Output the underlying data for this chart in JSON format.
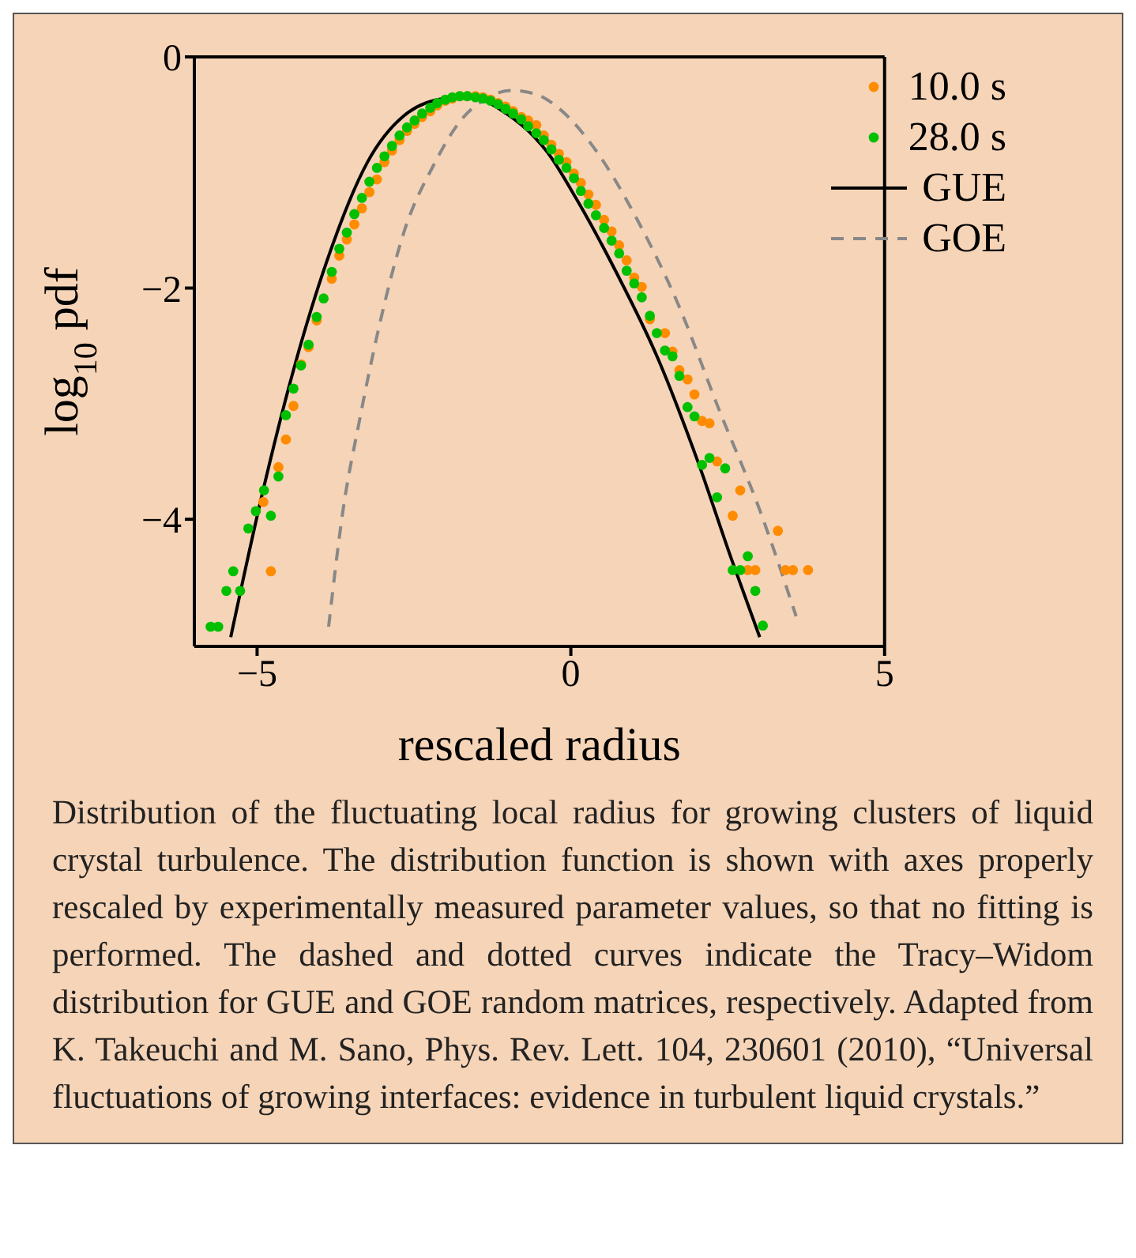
{
  "chart_data": {
    "type": "scatter",
    "xlabel": "rescaled radius",
    "ylabel": "log$_{10}$ pdf",
    "xlim": [
      -6,
      5
    ],
    "ylim": [
      -5.1,
      0
    ],
    "xticks": [
      -5,
      0,
      5
    ],
    "yticks": [
      -4,
      -2,
      0
    ],
    "grid": false,
    "legend": "top right",
    "series": [
      {
        "name": "10.0 s",
        "marker": "circle",
        "color": "#ff8c00",
        "x": [
          -4.9,
          -4.78,
          -4.66,
          -4.54,
          -4.42,
          -4.3,
          -4.18,
          -4.05,
          -3.81,
          -3.69,
          -3.57,
          -3.45,
          -3.33,
          -3.21,
          -3.09,
          -2.97,
          -2.85,
          -2.73,
          -2.61,
          -2.49,
          -2.37,
          -2.24,
          -2.13,
          -2.0,
          -1.89,
          -1.77,
          -1.65,
          -1.52,
          -1.4,
          -1.28,
          -1.16,
          -1.04,
          -0.92,
          -0.79,
          -0.68,
          -0.55,
          -0.43,
          -0.31,
          -0.19,
          -0.07,
          0.05,
          0.16,
          0.28,
          0.4,
          0.53,
          0.65,
          0.77,
          0.89,
          1.01,
          1.13,
          1.26,
          1.5,
          1.62,
          1.73,
          1.86,
          1.97,
          2.09,
          2.21,
          2.33,
          2.58,
          2.7,
          2.82,
          2.94,
          3.3,
          3.42,
          3.54,
          3.78
        ],
        "values": [
          -3.85,
          -4.45,
          -3.55,
          -3.31,
          -3.02,
          -2.66,
          -2.51,
          -2.28,
          -1.92,
          -1.72,
          -1.58,
          -1.45,
          -1.31,
          -1.17,
          -1.06,
          -0.91,
          -0.81,
          -0.72,
          -0.64,
          -0.58,
          -0.52,
          -0.47,
          -0.42,
          -0.38,
          -0.36,
          -0.34,
          -0.34,
          -0.34,
          -0.35,
          -0.37,
          -0.4,
          -0.43,
          -0.47,
          -0.52,
          -0.55,
          -0.59,
          -0.68,
          -0.76,
          -0.84,
          -0.91,
          -1.01,
          -1.09,
          -1.19,
          -1.28,
          -1.41,
          -1.51,
          -1.63,
          -1.76,
          -1.91,
          -1.99,
          -2.27,
          -2.39,
          -2.55,
          -2.71,
          -2.79,
          -2.92,
          -3.15,
          -3.17,
          -3.5,
          -3.97,
          -3.75,
          -4.44,
          -4.44,
          -4.1,
          -4.44,
          -4.44,
          -4.44
        ]
      },
      {
        "name": "28.0 s",
        "marker": "circle",
        "color": "#00c000",
        "x": [
          -5.74,
          -5.62,
          -5.49,
          -5.38,
          -5.27,
          -5.14,
          -5.02,
          -4.89,
          -4.78,
          -4.66,
          -4.54,
          -4.42,
          -4.3,
          -4.18,
          -4.05,
          -3.94,
          -3.81,
          -3.69,
          -3.57,
          -3.45,
          -3.33,
          -3.21,
          -3.09,
          -2.97,
          -2.85,
          -2.73,
          -2.61,
          -2.49,
          -2.37,
          -2.24,
          -2.13,
          -2.0,
          -1.89,
          -1.77,
          -1.65,
          -1.52,
          -1.4,
          -1.28,
          -1.16,
          -1.04,
          -0.92,
          -0.79,
          -0.68,
          -0.55,
          -0.43,
          -0.31,
          -0.19,
          -0.07,
          0.05,
          0.16,
          0.28,
          0.4,
          0.53,
          0.65,
          0.77,
          0.89,
          1.01,
          1.13,
          1.26,
          1.37,
          1.5,
          1.62,
          1.73,
          1.86,
          1.97,
          2.09,
          2.21,
          2.33,
          2.46,
          2.58,
          2.7,
          2.82,
          2.94,
          3.06
        ],
        "values": [
          -4.93,
          -4.93,
          -4.62,
          -4.45,
          -4.62,
          -4.08,
          -3.93,
          -3.75,
          -3.97,
          -3.63,
          -3.1,
          -2.87,
          -2.67,
          -2.49,
          -2.25,
          -2.09,
          -1.86,
          -1.66,
          -1.52,
          -1.36,
          -1.22,
          -1.08,
          -0.96,
          -0.86,
          -0.77,
          -0.68,
          -0.61,
          -0.55,
          -0.49,
          -0.44,
          -0.4,
          -0.37,
          -0.35,
          -0.34,
          -0.34,
          -0.35,
          -0.36,
          -0.38,
          -0.41,
          -0.45,
          -0.49,
          -0.54,
          -0.6,
          -0.66,
          -0.72,
          -0.8,
          -0.89,
          -0.96,
          -1.05,
          -1.16,
          -1.27,
          -1.37,
          -1.48,
          -1.59,
          -1.7,
          -1.85,
          -1.96,
          -2.08,
          -2.24,
          -2.39,
          -2.54,
          -2.59,
          -2.76,
          -3.03,
          -3.11,
          -3.53,
          -3.47,
          -3.81,
          -3.56,
          -4.44,
          -4.44,
          -4.32,
          -4.62,
          -4.92
        ]
      },
      {
        "name": "GUE",
        "type": "line",
        "color": "#000000",
        "line_style": "solid",
        "x": [
          -5.42,
          -4.9,
          -4.41,
          -3.89,
          -3.24,
          -2.59,
          -2.0,
          -1.6,
          -1.03,
          -0.57,
          -0.38,
          0.08,
          0.73,
          1.38,
          2.03,
          2.55,
          3.01
        ],
        "values": [
          -5.02,
          -3.74,
          -2.69,
          -1.77,
          -0.91,
          -0.48,
          -0.36,
          -0.35,
          -0.49,
          -0.7,
          -0.82,
          -1.22,
          -1.87,
          -2.6,
          -3.51,
          -4.33,
          -5.02
        ]
      },
      {
        "name": "GOE",
        "type": "line",
        "color": "#888888",
        "line_style": "dashed",
        "x": [
          -3.86,
          -3.63,
          -3.37,
          -3.05,
          -2.65,
          -2.2,
          -1.74,
          -1.35,
          -0.96,
          -0.57,
          -0.18,
          0.4,
          1.06,
          1.71,
          2.36,
          3.01,
          3.59
        ],
        "values": [
          -4.93,
          -3.92,
          -3.15,
          -2.32,
          -1.5,
          -0.95,
          -0.54,
          -0.36,
          -0.29,
          -0.32,
          -0.45,
          -0.81,
          -1.41,
          -2.14,
          -3.05,
          -3.92,
          -4.84
        ]
      }
    ],
    "annotations": [
      "Distribution of the fluctuating local radius for growing clusters of liquid crystal turbulence. The distribution function is shown with axes properly rescaled by experimentally measured parameter values, so that no fitting is performed. The dashed and dotted curves indicate the Tracy–Widom distribution for GUE and GOE random matrices, respectively. Adapted from K. Takeuchi and M. Sano, Phys. Rev. Lett. 104, 230601 (2010), “Universal fluctuations of growing interfaces: evidence in turbulent liquid crystals.”"
    ]
  }
}
